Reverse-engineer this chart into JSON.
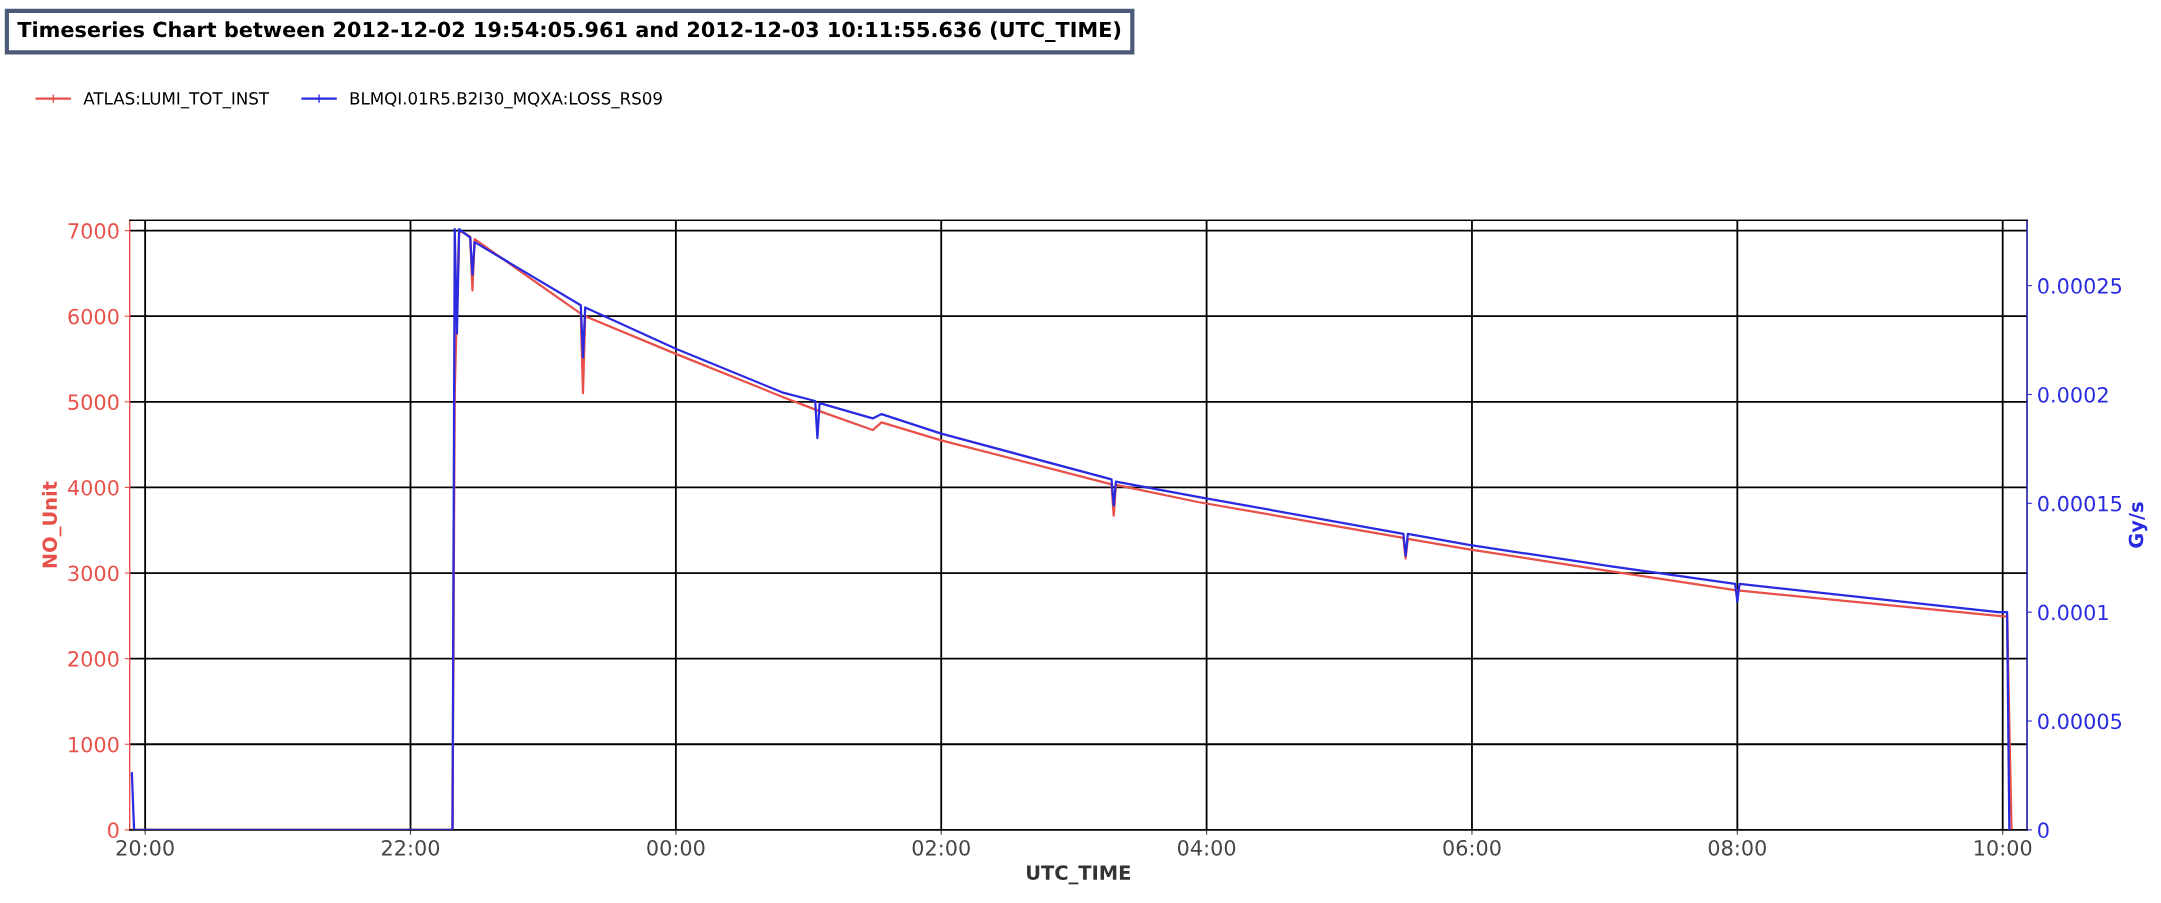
{
  "chart_data": {
    "type": "line",
    "title": "Timeseries Chart between 2012-12-02 19:54:05.961 and 2012-12-03 10:11:55.636 (UTC_TIME)",
    "xlabel": "UTC_TIME",
    "ylabel": "NO_Unit",
    "y2label": "Gy/s",
    "xlim": [
      "2012-12-02T19:53",
      "2012-12-03T10:11"
    ],
    "xticks": [
      {
        "value": "2012-12-02T20:00",
        "label": "20:00"
      },
      {
        "value": "2012-12-02T22:00",
        "label": "22:00"
      },
      {
        "value": "2012-12-03T00:00",
        "label": "00:00"
      },
      {
        "value": "2012-12-03T02:00",
        "label": "02:00"
      },
      {
        "value": "2012-12-03T04:00",
        "label": "04:00"
      },
      {
        "value": "2012-12-03T06:00",
        "label": "06:00"
      },
      {
        "value": "2012-12-03T08:00",
        "label": "08:00"
      },
      {
        "value": "2012-12-03T10:00",
        "label": "10:00"
      }
    ],
    "ylim": [
      0,
      7120
    ],
    "yticks": [
      0,
      1000,
      2000,
      3000,
      4000,
      5000,
      6000,
      7000
    ],
    "y2lim": [
      0,
      0.00028
    ],
    "y2ticks": [
      0,
      {
        "value": 5e-05,
        "label": "0.00005"
      },
      0.0001,
      0.00015,
      0.0002,
      0.00025
    ],
    "grid": true,
    "legend": "top left",
    "marker": "none",
    "line_style": "solid",
    "series": [
      {
        "name": "ATLAS:LUMI_TOT_INST",
        "color": "#e8504a",
        "x": [
          "2012-12-02T19:54",
          "2012-12-02T22:19",
          "2012-12-02T22:20",
          "2012-12-02T22:21",
          "2012-12-02T22:22",
          "2012-12-02T22:27",
          "2012-12-02T22:28",
          "2012-12-02T22:29",
          "2012-12-02T23:17",
          "2012-12-02T23:18",
          "2012-12-02T23:19",
          "2012-12-03T00:00",
          "2012-12-03T00:48",
          "2012-12-03T01:04",
          "2012-12-03T01:29",
          "2012-12-03T01:33",
          "2012-12-03T02:00",
          "2012-12-03T03:17",
          "2012-12-03T03:18",
          "2012-12-03T03:19",
          "2012-12-03T03:56",
          "2012-12-03T05:29",
          "2012-12-03T05:30",
          "2012-12-03T05:31",
          "2012-12-03T05:58",
          "2012-12-03T07:03",
          "2012-12-03T07:59",
          "2012-12-03T09:58",
          "2012-12-03T10:02",
          "2012-12-03T10:03",
          "2012-12-03T10:04"
        ],
        "values": [
          0,
          0,
          5100,
          6100,
          7000,
          6930,
          6300,
          6900,
          6030,
          5100,
          6000,
          5560,
          5060,
          4900,
          4670,
          4760,
          4550,
          4035,
          3670,
          4030,
          3830,
          3410,
          3170,
          3400,
          3280,
          3020,
          2800,
          2500,
          2490,
          1250,
          0
        ]
      },
      {
        "name": "BLMQI.01R5.B2I30_MQXA:LOSS_RS09",
        "color": "#2a2ae0",
        "axis": "y2",
        "x": [
          "2012-12-02T19:54",
          "2012-12-02T19:55",
          "2012-12-02T22:19",
          "2012-12-02T22:20",
          "2012-12-02T22:21",
          "2012-12-02T22:22",
          "2012-12-02T22:27",
          "2012-12-02T22:28",
          "2012-12-02T22:29",
          "2012-12-02T23:17",
          "2012-12-02T23:18",
          "2012-12-02T23:19",
          "2012-12-03T00:00",
          "2012-12-03T00:48",
          "2012-12-03T01:03",
          "2012-12-03T01:04",
          "2012-12-03T01:05",
          "2012-12-03T01:29",
          "2012-12-03T01:33",
          "2012-12-03T02:00",
          "2012-12-03T03:17",
          "2012-12-03T03:18",
          "2012-12-03T03:19",
          "2012-12-03T03:56",
          "2012-12-03T05:29",
          "2012-12-03T05:30",
          "2012-12-03T05:31",
          "2012-12-03T05:58",
          "2012-12-03T07:03",
          "2012-12-03T07:59",
          "2012-12-03T08:00",
          "2012-12-03T08:01",
          "2012-12-03T09:58",
          "2012-12-03T10:02",
          "2012-12-03T10:03"
        ],
        "values": [
          2.6e-05,
          0,
          0,
          0.000276,
          0.000228,
          0.000276,
          0.000272,
          0.000255,
          0.00027,
          0.000241,
          0.000217,
          0.00024,
          0.000221,
          0.000201,
          0.000197,
          0.00018,
          0.000196,
          0.000189,
          0.000191,
          0.000182,
          0.000161,
          0.000149,
          0.00016,
          0.000153,
          0.000136,
          0.000126,
          0.000136,
          0.000131,
          0.000121,
          0.000113,
          0.000105,
          0.000113,
          0.0001,
          0.0001,
          0
        ]
      }
    ]
  }
}
